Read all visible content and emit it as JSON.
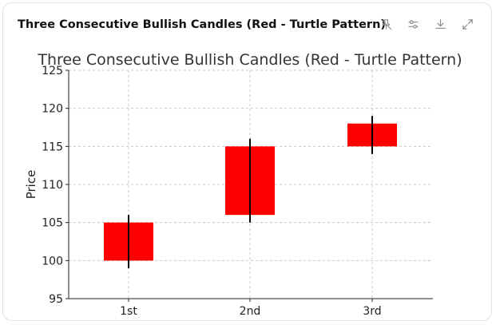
{
  "header": {
    "title": "Three Consecutive Bullish Candles (Red - Turtle Pattern)",
    "icons": [
      "pin-off-icon",
      "sliders-icon",
      "download-icon",
      "expand-icon"
    ]
  },
  "chart_data": {
    "type": "candlestick",
    "title": "Three Consecutive Bullish Candles (Red - Turtle Pattern)",
    "xlabel": "",
    "ylabel": "Price",
    "categories": [
      "1st",
      "2nd",
      "3rd"
    ],
    "candles": [
      {
        "label": "1st",
        "open": 100,
        "close": 105,
        "low": 99,
        "high": 106
      },
      {
        "label": "2nd",
        "open": 106,
        "close": 115,
        "low": 105,
        "high": 116
      },
      {
        "label": "3rd",
        "open": 115,
        "close": 118,
        "low": 114,
        "high": 119
      }
    ],
    "ylim": [
      95,
      125
    ],
    "yticks": [
      95,
      100,
      105,
      110,
      115,
      120,
      125
    ],
    "grid": true,
    "candle_color": "#ff0000",
    "wick_color": "#000000"
  }
}
